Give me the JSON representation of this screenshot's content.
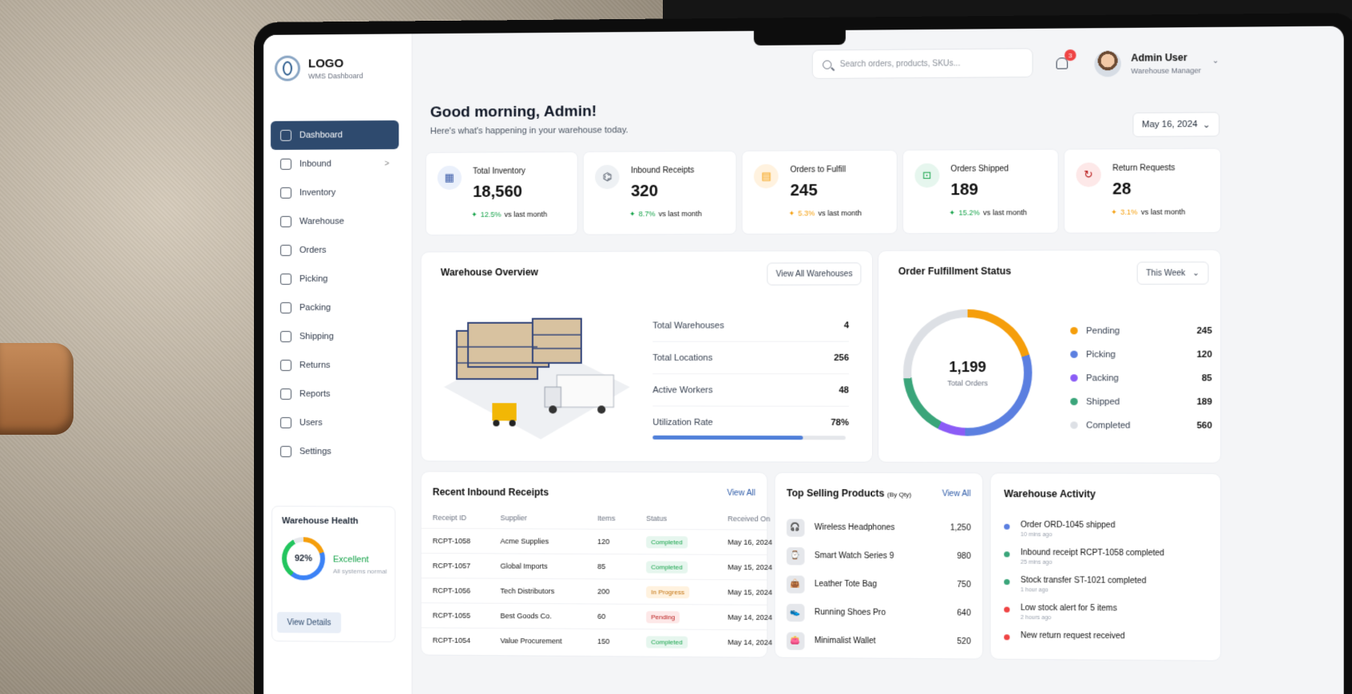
{
  "brand": {
    "title": "LOGO",
    "subtitle": "WMS Dashboard"
  },
  "nav": [
    {
      "label": "Dashboard",
      "active": true
    },
    {
      "label": "Inbound",
      "chevron": ">"
    },
    {
      "label": "Inventory"
    },
    {
      "label": "Warehouse"
    },
    {
      "label": "Orders"
    },
    {
      "label": "Picking"
    },
    {
      "label": "Packing"
    },
    {
      "label": "Shipping"
    },
    {
      "label": "Returns"
    },
    {
      "label": "Reports"
    },
    {
      "label": "Users"
    },
    {
      "label": "Settings"
    }
  ],
  "health": {
    "title": "Warehouse Health",
    "percent": "92%",
    "status": "Excellent",
    "note": "All systems normal",
    "button": "View Details"
  },
  "header": {
    "search_placeholder": "Search orders, products, SKUs...",
    "notifications": "3",
    "user_name": "Admin User",
    "user_role": "Warehouse Manager"
  },
  "greeting": {
    "title": "Good morning, Admin!",
    "subtitle": "Here's what's happening in your warehouse today.",
    "date": "May 16, 2024"
  },
  "stats": [
    {
      "label": "Total Inventory",
      "value": "18,560",
      "delta": "12.5%",
      "suffix": "vs last month",
      "color": "#16a34a",
      "icon": "box-icon"
    },
    {
      "label": "Inbound Receipts",
      "value": "320",
      "delta": "8.7%",
      "suffix": "vs last month",
      "color": "#16a34a",
      "icon": "receipt-icon"
    },
    {
      "label": "Orders to Fulfill",
      "value": "245",
      "delta": "5.3%",
      "suffix": "vs last month",
      "color": "#f59e0b",
      "icon": "clipboard-icon"
    },
    {
      "label": "Orders Shipped",
      "value": "189",
      "delta": "15.2%",
      "suffix": "vs last month",
      "color": "#16a34a",
      "icon": "truck-icon"
    },
    {
      "label": "Return Requests",
      "value": "28",
      "delta": "3.1%",
      "suffix": "vs last month",
      "color": "#f59e0b",
      "icon": "return-icon"
    }
  ],
  "warehouse": {
    "title": "Warehouse Overview",
    "button": "View All Warehouses",
    "rows": [
      {
        "label": "Total Warehouses",
        "value": "4"
      },
      {
        "label": "Total Locations",
        "value": "256"
      },
      {
        "label": "Active Workers",
        "value": "48"
      },
      {
        "label": "Utilization Rate",
        "value": "78%"
      }
    ],
    "utilization_fraction": 0.78
  },
  "fulfillment": {
    "title": "Order Fulfillment Status",
    "filter": "This Week",
    "total": "1,199",
    "total_label": "Total Orders",
    "items": [
      {
        "label": "Pending",
        "value": "245",
        "color": "#f59e0b"
      },
      {
        "label": "Picking",
        "value": "120",
        "color": "#5b7fe0"
      },
      {
        "label": "Packing",
        "value": "85",
        "color": "#8b5cf6"
      },
      {
        "label": "Shipped",
        "value": "189",
        "color": "#3aa57a"
      },
      {
        "label": "Completed",
        "value": "560",
        "color": "#dde0e5"
      }
    ]
  },
  "receipts": {
    "title": "Recent Inbound Receipts",
    "link": "View All",
    "columns": [
      "Receipt ID",
      "Supplier",
      "Items",
      "Status",
      "Received On"
    ],
    "rows": [
      [
        "RCPT-1058",
        "Acme Supplies",
        "120",
        "Completed",
        "May 16, 2024"
      ],
      [
        "RCPT-1057",
        "Global Imports",
        "85",
        "Completed",
        "May 15, 2024"
      ],
      [
        "RCPT-1056",
        "Tech Distributors",
        "200",
        "In Progress",
        "May 15, 2024"
      ],
      [
        "RCPT-1055",
        "Best Goods Co.",
        "60",
        "Pending",
        "May 14, 2024"
      ],
      [
        "RCPT-1054",
        "Value Procurement",
        "150",
        "Completed",
        "May 14, 2024"
      ]
    ]
  },
  "products": {
    "title": "Top Selling Products",
    "title_note": "(By Qty)",
    "link": "View All",
    "items": [
      {
        "name": "Wireless Headphones",
        "qty": "1,250"
      },
      {
        "name": "Smart Watch Series 9",
        "qty": "980"
      },
      {
        "name": "Leather Tote Bag",
        "qty": "750"
      },
      {
        "name": "Running Shoes Pro",
        "qty": "640"
      },
      {
        "name": "Minimalist Wallet",
        "qty": "520"
      }
    ]
  },
  "activity": {
    "title": "Warehouse Activity",
    "items": [
      {
        "text": "Order ORD-1045 shipped",
        "time": "10 mins ago",
        "color": "#5b7fe0"
      },
      {
        "text": "Inbound receipt RCPT-1058 completed",
        "time": "25 mins ago",
        "color": "#3aa57a"
      },
      {
        "text": "Stock transfer ST-1021 completed",
        "time": "1 hour ago",
        "color": "#3aa57a"
      },
      {
        "text": "Low stock alert for 5 items",
        "time": "2 hours ago",
        "color": "#ef4444"
      },
      {
        "text": "New return request received",
        "time": "",
        "color": "#ef4444"
      }
    ]
  }
}
